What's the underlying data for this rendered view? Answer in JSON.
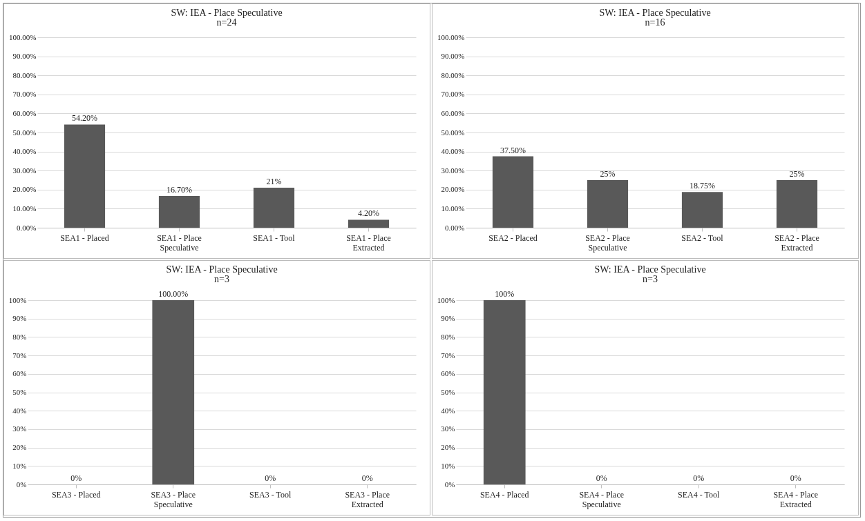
{
  "chart_data": [
    {
      "type": "bar",
      "title": "SW: IEA - Place Speculative",
      "subtitle": "n=24",
      "categories": [
        "SEA1 - Placed",
        "SEA1 - Place Speculative",
        "SEA1 - Tool",
        "SEA1 - Place Extracted"
      ],
      "values": [
        54.2,
        16.7,
        21,
        4.2
      ],
      "value_labels": [
        "54.20%",
        "16.70%",
        "21%",
        "4.20%"
      ],
      "color": "#595959",
      "ylim": [
        0,
        100
      ],
      "yticks": [
        {
          "value": 0,
          "label": "0.00%"
        },
        {
          "value": 10,
          "label": "10.00%"
        },
        {
          "value": 20,
          "label": "20.00%"
        },
        {
          "value": 30,
          "label": "30.00%"
        },
        {
          "value": 40,
          "label": "40.00%"
        },
        {
          "value": 50,
          "label": "50.00%"
        },
        {
          "value": 60,
          "label": "60.00%"
        },
        {
          "value": 70,
          "label": "70.00%"
        },
        {
          "value": 80,
          "label": "80.00%"
        },
        {
          "value": 90,
          "label": "90.00%"
        },
        {
          "value": 100,
          "label": "100.00%"
        }
      ],
      "grid": "y"
    },
    {
      "type": "bar",
      "title": "SW: IEA - Place Speculative",
      "subtitle": "n=16",
      "categories": [
        "SEA2 - Placed",
        "SEA2 - Place Speculative",
        "SEA2 - Tool",
        "SEA2 - Place Extracted"
      ],
      "values": [
        37.5,
        25,
        18.75,
        25
      ],
      "value_labels": [
        "37.50%",
        "25%",
        "18.75%",
        "25%"
      ],
      "color": "#595959",
      "ylim": [
        0,
        100
      ],
      "yticks": [
        {
          "value": 0,
          "label": "0.00%"
        },
        {
          "value": 10,
          "label": "10.00%"
        },
        {
          "value": 20,
          "label": "20.00%"
        },
        {
          "value": 30,
          "label": "30.00%"
        },
        {
          "value": 40,
          "label": "40.00%"
        },
        {
          "value": 50,
          "label": "50.00%"
        },
        {
          "value": 60,
          "label": "60.00%"
        },
        {
          "value": 70,
          "label": "70.00%"
        },
        {
          "value": 80,
          "label": "80.00%"
        },
        {
          "value": 90,
          "label": "90.00%"
        },
        {
          "value": 100,
          "label": "100.00%"
        }
      ],
      "grid": "y"
    },
    {
      "type": "bar",
      "title": "SW: IEA - Place Speculative",
      "subtitle": "n=3",
      "categories": [
        "SEA3 - Placed",
        "SEA3 - Place Speculative",
        "SEA3 - Tool",
        "SEA3 - Place Extracted"
      ],
      "values": [
        0,
        100,
        0,
        0
      ],
      "value_labels": [
        "0%",
        "100.00%",
        "0%",
        "0%"
      ],
      "color": "#595959",
      "ylim": [
        0,
        100
      ],
      "yticks": [
        {
          "value": 0,
          "label": "0%"
        },
        {
          "value": 10,
          "label": "10%"
        },
        {
          "value": 20,
          "label": "20%"
        },
        {
          "value": 30,
          "label": "30%"
        },
        {
          "value": 40,
          "label": "40%"
        },
        {
          "value": 50,
          "label": "50%"
        },
        {
          "value": 60,
          "label": "60%"
        },
        {
          "value": 70,
          "label": "70%"
        },
        {
          "value": 80,
          "label": "80%"
        },
        {
          "value": 90,
          "label": "90%"
        },
        {
          "value": 100,
          "label": "100%"
        }
      ],
      "grid": "y"
    },
    {
      "type": "bar",
      "title": "SW: IEA - Place Speculative",
      "subtitle": "n=3",
      "categories": [
        "SEA4 - Placed",
        "SEA4 - Place Speculative",
        "SEA4 - Tool",
        "SEA4 - Place Extracted"
      ],
      "values": [
        100,
        0,
        0,
        0
      ],
      "value_labels": [
        "100%",
        "0%",
        "0%",
        "0%"
      ],
      "color": "#595959",
      "ylim": [
        0,
        100
      ],
      "yticks": [
        {
          "value": 0,
          "label": "0%"
        },
        {
          "value": 10,
          "label": "10%"
        },
        {
          "value": 20,
          "label": "20%"
        },
        {
          "value": 30,
          "label": "30%"
        },
        {
          "value": 40,
          "label": "40%"
        },
        {
          "value": 50,
          "label": "50%"
        },
        {
          "value": 60,
          "label": "60%"
        },
        {
          "value": 70,
          "label": "70%"
        },
        {
          "value": 80,
          "label": "80%"
        },
        {
          "value": 90,
          "label": "90%"
        },
        {
          "value": 100,
          "label": "100%"
        }
      ],
      "grid": "y"
    }
  ]
}
